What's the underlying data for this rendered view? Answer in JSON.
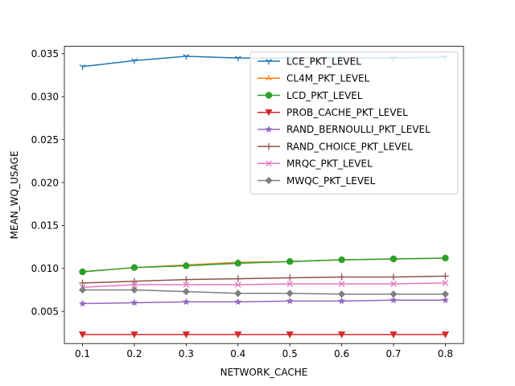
{
  "chart_data": {
    "type": "line",
    "xlabel": "NETWORK_CACHE",
    "ylabel": "MEAN_WQ_USAGE",
    "x": [
      0.1,
      0.2,
      0.3,
      0.4,
      0.5,
      0.6,
      0.7,
      0.8
    ],
    "xlim": [
      0.065,
      0.835
    ],
    "ylim": [
      0.00125,
      0.03586
    ],
    "xticks": [
      0.1,
      0.2,
      0.3,
      0.4,
      0.5,
      0.6,
      0.7,
      0.8
    ],
    "xtick_labels": [
      "0.1",
      "0.2",
      "0.3",
      "0.4",
      "0.5",
      "0.6",
      "0.7",
      "0.8"
    ],
    "yticks": [
      0.005,
      0.01,
      0.015,
      0.02,
      0.025,
      0.03,
      0.035
    ],
    "ytick_labels": [
      "0.005",
      "0.010",
      "0.015",
      "0.020",
      "0.025",
      "0.030",
      "0.035"
    ],
    "grid": false,
    "legend_position": "top-right",
    "series": [
      {
        "name": "LCE_PKT_LEVEL",
        "color": "#1f77b4",
        "marker": "tri_down",
        "values": [
          0.0335,
          0.0342,
          0.0347,
          0.0345,
          0.0345,
          0.0345,
          0.0345,
          0.0346
        ]
      },
      {
        "name": "CL4M_PKT_LEVEL",
        "color": "#ff7f0e",
        "marker": "tri_up",
        "values": [
          0.0096,
          0.0101,
          0.0104,
          0.0107,
          0.0108,
          0.011,
          0.0111,
          0.0112
        ]
      },
      {
        "name": "LCD_PKT_LEVEL",
        "color": "#2ca02c",
        "marker": "circle",
        "values": [
          0.0096,
          0.0101,
          0.0103,
          0.0106,
          0.0108,
          0.011,
          0.0111,
          0.0112
        ]
      },
      {
        "name": "PROB_CACHE_PKT_LEVEL",
        "color": "#d62728",
        "marker": "triangle_down",
        "values": [
          0.0023,
          0.0023,
          0.0023,
          0.0023,
          0.0023,
          0.0023,
          0.0023,
          0.0023
        ]
      },
      {
        "name": "RAND_BERNOULLI_PKT_LEVEL",
        "color": "#9467bd",
        "marker": "star",
        "values": [
          0.0059,
          0.006,
          0.0061,
          0.0061,
          0.0062,
          0.0062,
          0.0063,
          0.0063
        ]
      },
      {
        "name": "RAND_CHOICE_PKT_LEVEL",
        "color": "#8c564b",
        "marker": "plus",
        "values": [
          0.0083,
          0.0085,
          0.0087,
          0.0088,
          0.0089,
          0.009,
          0.009,
          0.0091
        ]
      },
      {
        "name": "MRQC_PKT_LEVEL",
        "color": "#e377c2",
        "marker": "x",
        "values": [
          0.0078,
          0.0081,
          0.0081,
          0.0081,
          0.0082,
          0.0082,
          0.0082,
          0.0083
        ]
      },
      {
        "name": "MWQC_PKT_LEVEL",
        "color": "#7f7f7f",
        "marker": "diamond",
        "values": [
          0.0075,
          0.0075,
          0.0073,
          0.0071,
          0.0071,
          0.007,
          0.007,
          0.007
        ]
      }
    ]
  }
}
